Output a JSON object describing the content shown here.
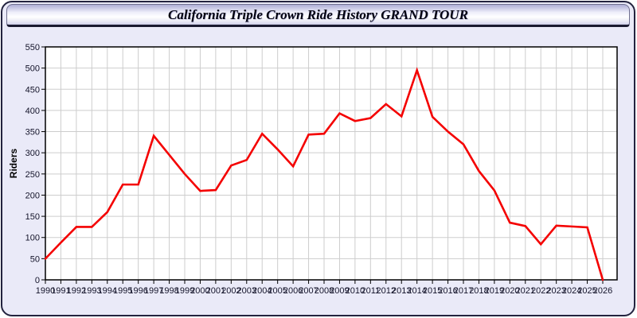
{
  "window": {
    "title": "California Triple Crown Ride History GRAND TOUR"
  },
  "chart_data": {
    "type": "line",
    "title": "California Triple Crown Ride History GRAND TOUR",
    "xlabel": "",
    "ylabel": "Riders",
    "x": [
      1990,
      1991,
      1992,
      1993,
      1994,
      1995,
      1996,
      1997,
      1998,
      1999,
      2000,
      2001,
      2002,
      2003,
      2004,
      2005,
      2006,
      2007,
      2008,
      2009,
      2010,
      2011,
      2012,
      2013,
      2014,
      2015,
      2016,
      2017,
      2018,
      2019,
      2020,
      2021,
      2022,
      2023,
      2024,
      2025,
      2026
    ],
    "series": [
      {
        "name": "Riders",
        "color": "#f40000",
        "values": [
          50,
          88,
          125,
          125,
          160,
          225,
          225,
          340,
          295,
          250,
          210,
          212,
          270,
          283,
          345,
          308,
          268,
          343,
          345,
          393,
          375,
          382,
          415,
          386,
          495,
          385,
          350,
          320,
          257,
          211,
          135,
          127,
          84,
          128,
          126,
          124,
          0
        ]
      }
    ],
    "ylim": [
      0,
      550
    ],
    "ytick_step": 50,
    "grid": true,
    "legend": "none",
    "colors": {
      "plot_background": "#ffffff",
      "panel_background": "#eaeaf8",
      "gridline": "#cdcdcd",
      "axis_frame": "#000000",
      "tick_label": "#14142a"
    }
  }
}
